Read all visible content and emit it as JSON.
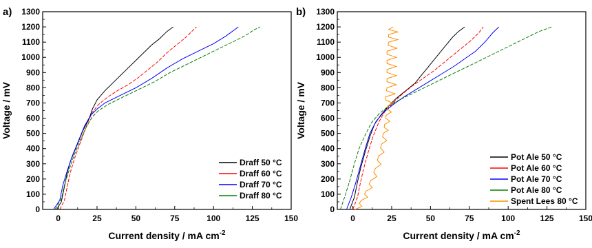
{
  "chart_data": [
    {
      "panel_label": "a)",
      "type": "line",
      "xlabel": "Current density / mA cm",
      "xlabel_sup": "-2",
      "ylabel": "Voltage / mV",
      "xlim": [
        -10,
        150
      ],
      "ylim": [
        0,
        1300
      ],
      "xticks": [
        0,
        25,
        50,
        75,
        100,
        125,
        150
      ],
      "yticks": [
        0,
        100,
        200,
        300,
        400,
        500,
        600,
        700,
        800,
        900,
        1000,
        1100,
        1200,
        1300
      ],
      "grid": false,
      "legend_position": "bottom-right",
      "series": [
        {
          "name": "Draff 50 °C",
          "color": "#000000",
          "points": [
            [
              -1,
              0
            ],
            [
              2,
              50
            ],
            [
              4,
              150
            ],
            [
              6,
              250
            ],
            [
              8,
              320
            ],
            [
              12,
              420
            ],
            [
              16,
              520
            ],
            [
              20,
              600
            ],
            [
              22,
              660
            ],
            [
              25,
              720
            ],
            [
              30,
              780
            ],
            [
              35,
              830
            ],
            [
              40,
              880
            ],
            [
              45,
              930
            ],
            [
              50,
              980
            ],
            [
              55,
              1030
            ],
            [
              60,
              1080
            ],
            [
              65,
              1120
            ],
            [
              70,
              1170
            ],
            [
              74,
              1200
            ]
          ]
        },
        {
          "name": "Draff 60 °C",
          "color": "#ff0000",
          "points": [
            [
              1,
              0
            ],
            [
              4,
              60
            ],
            [
              6,
              160
            ],
            [
              8,
              250
            ],
            [
              11,
              350
            ],
            [
              15,
              460
            ],
            [
              19,
              570
            ],
            [
              22,
              640
            ],
            [
              26,
              690
            ],
            [
              32,
              740
            ],
            [
              38,
              780
            ],
            [
              45,
              820
            ],
            [
              52,
              870
            ],
            [
              58,
              920
            ],
            [
              64,
              970
            ],
            [
              70,
              1030
            ],
            [
              76,
              1080
            ],
            [
              82,
              1130
            ],
            [
              86,
              1170
            ],
            [
              89,
              1200
            ]
          ]
        },
        {
          "name": "Draff 70 °C",
          "color": "#0000ff",
          "points": [
            [
              -3,
              0
            ],
            [
              1,
              60
            ],
            [
              3,
              160
            ],
            [
              6,
              260
            ],
            [
              9,
              350
            ],
            [
              13,
              450
            ],
            [
              17,
              550
            ],
            [
              21,
              620
            ],
            [
              25,
              660
            ],
            [
              30,
              700
            ],
            [
              40,
              750
            ],
            [
              50,
              800
            ],
            [
              60,
              860
            ],
            [
              70,
              930
            ],
            [
              80,
              990
            ],
            [
              90,
              1040
            ],
            [
              100,
              1090
            ],
            [
              108,
              1140
            ],
            [
              112,
              1170
            ],
            [
              116,
              1200
            ]
          ]
        },
        {
          "name": "Draff 80 °C",
          "color": "#008000",
          "points": [
            [
              -2,
              0
            ],
            [
              2,
              70
            ],
            [
              4,
              160
            ],
            [
              7,
              260
            ],
            [
              10,
              350
            ],
            [
              14,
              450
            ],
            [
              18,
              540
            ],
            [
              22,
              610
            ],
            [
              26,
              650
            ],
            [
              32,
              690
            ],
            [
              42,
              740
            ],
            [
              52,
              790
            ],
            [
              62,
              840
            ],
            [
              72,
              900
            ],
            [
              82,
              950
            ],
            [
              92,
              1000
            ],
            [
              102,
              1050
            ],
            [
              112,
              1100
            ],
            [
              120,
              1140
            ],
            [
              126,
              1180
            ],
            [
              130,
              1200
            ]
          ]
        }
      ]
    },
    {
      "panel_label": "b)",
      "type": "line",
      "xlabel": "Current density / mA cm",
      "xlabel_sup": "-2",
      "ylabel": "Voltage / mV",
      "xlim": [
        -10,
        150
      ],
      "ylim": [
        0,
        1300
      ],
      "xticks": [
        0,
        25,
        50,
        75,
        100,
        125,
        150
      ],
      "yticks": [
        0,
        100,
        200,
        300,
        400,
        500,
        600,
        700,
        800,
        900,
        1000,
        1100,
        1200,
        1300
      ],
      "grid": false,
      "legend_position": "bottom-right",
      "series": [
        {
          "name": "Pot Ale 50 °C",
          "color": "#000000",
          "points": [
            [
              -2,
              0
            ],
            [
              1,
              80
            ],
            [
              3,
              180
            ],
            [
              5,
              270
            ],
            [
              8,
              380
            ],
            [
              11,
              480
            ],
            [
              14,
              560
            ],
            [
              18,
              620
            ],
            [
              23,
              680
            ],
            [
              28,
              730
            ],
            [
              34,
              780
            ],
            [
              40,
              830
            ],
            [
              44,
              880
            ],
            [
              48,
              930
            ],
            [
              52,
              980
            ],
            [
              56,
              1030
            ],
            [
              60,
              1080
            ],
            [
              64,
              1130
            ],
            [
              68,
              1170
            ],
            [
              72,
              1200
            ]
          ]
        },
        {
          "name": "Pot Ale 60 °C",
          "color": "#ff0000",
          "points": [
            [
              0,
              0
            ],
            [
              3,
              80
            ],
            [
              5,
              180
            ],
            [
              7,
              270
            ],
            [
              10,
              380
            ],
            [
              13,
              480
            ],
            [
              17,
              580
            ],
            [
              21,
              650
            ],
            [
              26,
              700
            ],
            [
              32,
              760
            ],
            [
              38,
              810
            ],
            [
              45,
              860
            ],
            [
              52,
              910
            ],
            [
              58,
              960
            ],
            [
              64,
              1010
            ],
            [
              70,
              1060
            ],
            [
              76,
              1110
            ],
            [
              81,
              1160
            ],
            [
              84,
              1200
            ]
          ]
        },
        {
          "name": "Pot Ale 70 °C",
          "color": "#0000ff",
          "points": [
            [
              -4,
              0
            ],
            [
              -1,
              80
            ],
            [
              2,
              180
            ],
            [
              5,
              290
            ],
            [
              8,
              400
            ],
            [
              11,
              500
            ],
            [
              15,
              580
            ],
            [
              20,
              640
            ],
            [
              26,
              690
            ],
            [
              33,
              740
            ],
            [
              41,
              790
            ],
            [
              49,
              840
            ],
            [
              57,
              890
            ],
            [
              65,
              940
            ],
            [
              72,
              990
            ],
            [
              79,
              1040
            ],
            [
              85,
              1100
            ],
            [
              90,
              1160
            ],
            [
              94,
              1200
            ]
          ]
        },
        {
          "name": "Pot Ale 80 °C",
          "color": "#008000",
          "points": [
            [
              -8,
              0
            ],
            [
              -5,
              90
            ],
            [
              -2,
              190
            ],
            [
              1,
              300
            ],
            [
              4,
              400
            ],
            [
              8,
              490
            ],
            [
              12,
              570
            ],
            [
              17,
              630
            ],
            [
              23,
              680
            ],
            [
              30,
              720
            ],
            [
              40,
              770
            ],
            [
              50,
              820
            ],
            [
              60,
              870
            ],
            [
              70,
              920
            ],
            [
              80,
              970
            ],
            [
              90,
              1020
            ],
            [
              100,
              1070
            ],
            [
              110,
              1120
            ],
            [
              120,
              1170
            ],
            [
              128,
              1200
            ]
          ]
        },
        {
          "name": "Spent Lees 80 °C",
          "color": "#ff8c00",
          "oscillating": true,
          "points": [
            [
              3,
              0
            ],
            [
              7,
              60
            ],
            [
              10,
              120
            ],
            [
              13,
              190
            ],
            [
              16,
              270
            ],
            [
              18,
              350
            ],
            [
              20,
              430
            ],
            [
              21,
              500
            ],
            [
              22,
              560
            ],
            [
              23,
              620
            ],
            [
              24,
              680
            ],
            [
              24,
              740
            ],
            [
              25,
              800
            ],
            [
              25,
              860
            ],
            [
              25,
              920
            ],
            [
              25,
              980
            ],
            [
              25,
              1040
            ],
            [
              26,
              1100
            ],
            [
              26,
              1150
            ],
            [
              26,
              1200
            ]
          ]
        }
      ]
    }
  ]
}
